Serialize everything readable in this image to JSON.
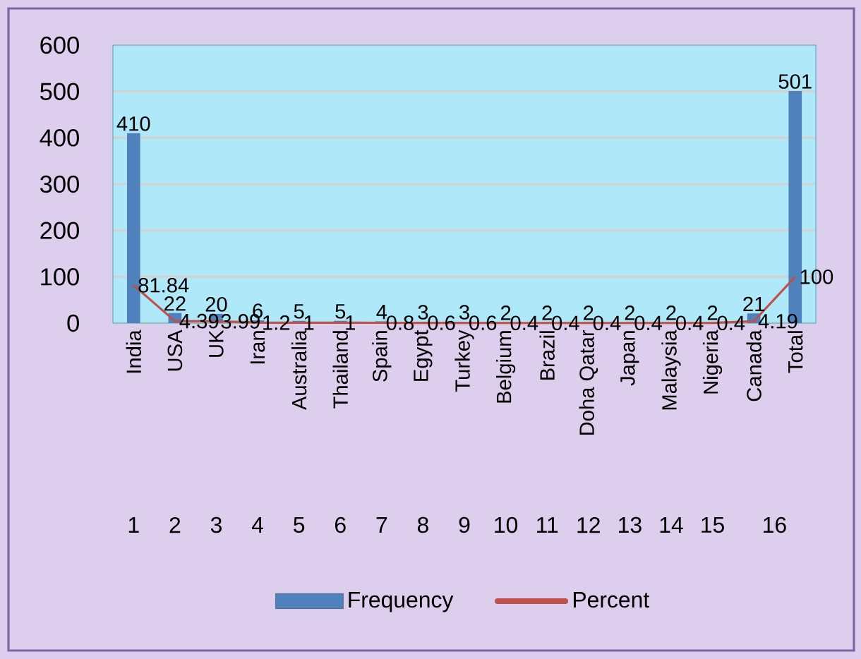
{
  "chart_data": {
    "type": "bar",
    "categories": [
      "India",
      "USA",
      "UK",
      "Iran",
      "Australia",
      "Thailand",
      "Spain",
      "Egypt",
      "Turkey",
      "Belgium",
      "Brazil",
      "Doha Qatar",
      "Japan",
      "Malaysia",
      "Nigeria",
      "Canada",
      "Total"
    ],
    "series": [
      {
        "name": "Frequency",
        "color": "#4f81bd",
        "values": [
          410,
          22,
          20,
          6,
          5,
          5,
          4,
          3,
          3,
          2,
          2,
          2,
          2,
          2,
          2,
          21,
          501
        ]
      },
      {
        "name": "Percent",
        "type": "line",
        "color": "#c0504d",
        "values": [
          81.84,
          4.39,
          3.99,
          1.2,
          1,
          1,
          0.8,
          0.6,
          0.6,
          0.4,
          0.4,
          0.4,
          0.4,
          0.4,
          0.4,
          4.19,
          100
        ]
      }
    ],
    "annotations": [
      "1",
      "2",
      "3",
      "4",
      "5",
      "6",
      "7",
      "8",
      "9",
      "10",
      "11",
      "12",
      "13",
      "14",
      "15",
      "16"
    ],
    "ylim": [
      0,
      600
    ],
    "yticks": [
      0,
      100,
      200,
      300,
      400,
      500,
      600
    ],
    "grid": "y",
    "legend": "bottom",
    "data_labels": true
  }
}
